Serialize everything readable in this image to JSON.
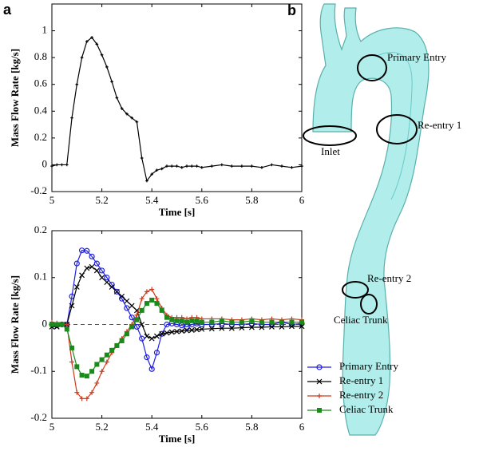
{
  "panels": [
    "a",
    "b"
  ],
  "image_labels": [
    "Primary Entry",
    "Re-entry 1",
    "Inlet",
    "Re-entry 2",
    "Celiac Trunk"
  ],
  "chart_data": [
    {
      "type": "line",
      "x_label": "Time [s]",
      "y_label": "Mass Flow Rate [kg/s]",
      "x": [
        5.0,
        5.02,
        5.04,
        5.06,
        5.08,
        5.1,
        5.12,
        5.14,
        5.16,
        5.18,
        5.2,
        5.22,
        5.24,
        5.26,
        5.28,
        5.3,
        5.32,
        5.34,
        5.36,
        5.38,
        5.4,
        5.42,
        5.44,
        5.46,
        5.48,
        5.5,
        5.52,
        5.54,
        5.56,
        5.58,
        5.6,
        5.64,
        5.68,
        5.72,
        5.76,
        5.8,
        5.84,
        5.88,
        5.92,
        5.96,
        6.0
      ],
      "values": [
        -0.01,
        0.0,
        0.0,
        0.0,
        0.35,
        0.6,
        0.8,
        0.92,
        0.95,
        0.9,
        0.82,
        0.73,
        0.62,
        0.5,
        0.42,
        0.38,
        0.35,
        0.32,
        0.05,
        -0.12,
        -0.07,
        -0.04,
        -0.03,
        -0.01,
        -0.01,
        -0.01,
        -0.02,
        -0.01,
        -0.01,
        -0.01,
        -0.02,
        -0.01,
        0.0,
        -0.01,
        -0.01,
        -0.01,
        -0.02,
        0.0,
        -0.01,
        -0.02,
        -0.01
      ],
      "color": "#000000",
      "marker": "plus",
      "xlim": [
        5,
        6
      ],
      "xticks": [
        5,
        5.2,
        5.4,
        5.6,
        5.8,
        6
      ],
      "ylim": [
        -0.2,
        1.2
      ],
      "yticks": [
        -0.2,
        0,
        0.2,
        0.4,
        0.6,
        0.8,
        1
      ]
    },
    {
      "type": "line",
      "x_label": "Time [s]",
      "y_label": "Mass Flow Rate [kg/s]",
      "x": [
        5.0,
        5.02,
        5.04,
        5.06,
        5.08,
        5.1,
        5.12,
        5.14,
        5.16,
        5.18,
        5.2,
        5.22,
        5.24,
        5.26,
        5.28,
        5.3,
        5.32,
        5.34,
        5.36,
        5.38,
        5.4,
        5.42,
        5.44,
        5.46,
        5.48,
        5.5,
        5.52,
        5.54,
        5.56,
        5.58,
        5.6,
        5.64,
        5.68,
        5.72,
        5.76,
        5.8,
        5.84,
        5.88,
        5.92,
        5.96,
        6.0
      ],
      "series": [
        {
          "name": "Primary Entry",
          "color": "#1f1fe0",
          "marker": "circle",
          "values": [
            0,
            -0.002,
            0.0,
            0.0,
            0.06,
            0.13,
            0.158,
            0.157,
            0.145,
            0.13,
            0.115,
            0.1,
            0.085,
            0.07,
            0.055,
            0.035,
            0.015,
            -0.005,
            -0.03,
            -0.07,
            -0.095,
            -0.06,
            -0.02,
            0.0,
            0.002,
            0.0,
            -0.002,
            -0.005,
            0.0,
            0.002,
            0.0,
            0.0,
            0.002,
            0.0,
            0.0,
            0.002,
            0.0,
            0.0,
            0.005,
            0.0,
            0.002
          ]
        },
        {
          "name": "Re-entry 1",
          "color": "#000000",
          "marker": "cross",
          "values": [
            -0.005,
            -0.005,
            0.0,
            0.0,
            0.04,
            0.08,
            0.105,
            0.12,
            0.123,
            0.115,
            0.1,
            0.09,
            0.08,
            0.07,
            0.06,
            0.05,
            0.04,
            0.03,
            0.0,
            -0.025,
            -0.03,
            -0.025,
            -0.02,
            -0.018,
            -0.016,
            -0.015,
            -0.014,
            -0.013,
            -0.012,
            -0.011,
            -0.01,
            -0.009,
            -0.008,
            -0.008,
            -0.007,
            -0.006,
            -0.006,
            -0.005,
            -0.005,
            -0.004,
            -0.004
          ]
        },
        {
          "name": "Re-entry 2",
          "color": "#d03a1a",
          "marker": "plus",
          "values": [
            0.005,
            0.003,
            0.0,
            0.0,
            -0.08,
            -0.145,
            -0.158,
            -0.158,
            -0.145,
            -0.125,
            -0.1,
            -0.08,
            -0.06,
            -0.045,
            -0.03,
            -0.015,
            0.0,
            0.02,
            0.055,
            0.07,
            0.075,
            0.055,
            0.035,
            0.02,
            0.015,
            0.015,
            0.015,
            0.012,
            0.015,
            0.015,
            0.012,
            0.012,
            0.012,
            0.01,
            0.01,
            0.012,
            0.01,
            0.012,
            0.01,
            0.012,
            0.01
          ]
        },
        {
          "name": "Celiac Trunk",
          "color": "#1a8a1a",
          "marker": "square",
          "values": [
            0.0,
            0.0,
            0.0,
            -0.01,
            -0.05,
            -0.09,
            -0.108,
            -0.11,
            -0.1,
            -0.085,
            -0.075,
            -0.065,
            -0.055,
            -0.045,
            -0.035,
            -0.02,
            -0.005,
            0.01,
            0.03,
            0.045,
            0.052,
            0.045,
            0.03,
            0.015,
            0.01,
            0.008,
            0.008,
            0.005,
            0.008,
            0.008,
            0.005,
            0.005,
            0.008,
            0.005,
            0.005,
            0.008,
            0.005,
            0.005,
            0.005,
            0.005,
            0.005
          ]
        }
      ],
      "reference_line": 0,
      "legend": "outside lower right",
      "xlim": [
        5,
        6
      ],
      "xticks": [
        5,
        5.2,
        5.4,
        5.6,
        5.8,
        6
      ],
      "ylim": [
        -0.2,
        0.2
      ],
      "yticks": [
        -0.2,
        -0.1,
        0,
        0.1,
        0.2
      ]
    }
  ]
}
